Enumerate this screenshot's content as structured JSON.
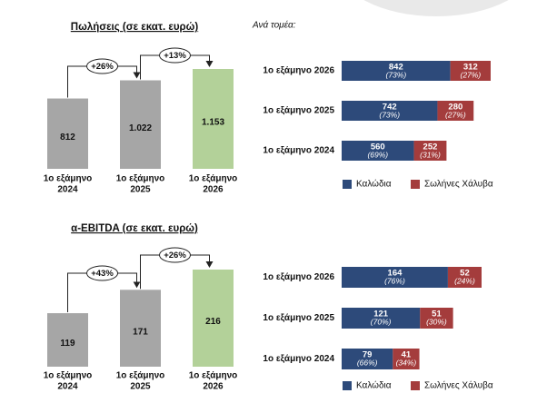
{
  "chart_data": [
    {
      "type": "bar",
      "title": "Πωλήσεις (σε εκατ. ευρώ)",
      "categories": [
        [
          "1ο εξάμηνο",
          "2024"
        ],
        [
          "1ο εξάμηνο",
          "2025"
        ],
        [
          "1ο εξάμηνο",
          "2026"
        ]
      ],
      "values": [
        812,
        1022,
        1153
      ],
      "value_labels": [
        "812",
        "1.022",
        "1.153"
      ],
      "colors": [
        "#a6a6a6",
        "#a6a6a6",
        "#b3d199"
      ],
      "change_labels": [
        "+26%",
        "+13%"
      ]
    },
    {
      "type": "stacked_barh",
      "title": "Ανά τομέα:",
      "categories": [
        "1ο εξάμηνο 2026",
        "1ο εξάμηνο 2025",
        "1ο εξάμηνο 2024"
      ],
      "series": [
        {
          "name": "Καλώδια",
          "color": "#2d4a7a",
          "values": [
            842,
            742,
            560
          ],
          "share_labels": [
            "(73%)",
            "(73%)",
            "(69%)"
          ]
        },
        {
          "name": "Σωλήνες Χάλυβα",
          "color": "#a43c3c",
          "values": [
            312,
            280,
            252
          ],
          "share_labels": [
            "(27%)",
            "(27%)",
            "(31%)"
          ]
        }
      ]
    },
    {
      "type": "bar",
      "title": "α-EBITDA (σε εκατ. ευρώ)",
      "categories": [
        [
          "1ο εξάμηνο",
          "2024"
        ],
        [
          "1ο εξάμηνο",
          "2025"
        ],
        [
          "1ο εξάμηνο",
          "2026"
        ]
      ],
      "values": [
        119,
        171,
        216
      ],
      "colors": [
        "#a6a6a6",
        "#a6a6a6",
        "#b3d199"
      ],
      "change_labels": [
        "+43%",
        "+26%"
      ]
    },
    {
      "type": "stacked_barh",
      "categories": [
        "1ο εξάμηνο 2026",
        "1ο εξάμηνο 2025",
        "1ο εξάμηνο 2024"
      ],
      "series": [
        {
          "name": "Καλώδια",
          "color": "#2d4a7a",
          "values": [
            164,
            121,
            79
          ],
          "share_labels": [
            "(76%)",
            "(70%)",
            "(66%)"
          ]
        },
        {
          "name": "Σωλήνες Χάλυβα",
          "color": "#a43c3c",
          "values": [
            52,
            51,
            41
          ],
          "share_labels": [
            "(24%)",
            "(30%)",
            "(34%)"
          ]
        }
      ]
    }
  ]
}
